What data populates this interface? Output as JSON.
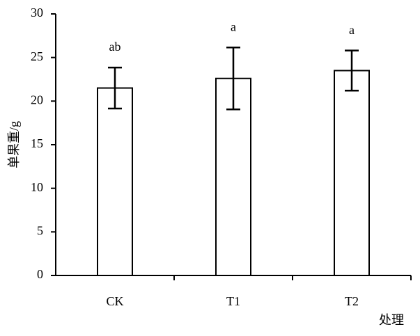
{
  "chart_data": {
    "type": "bar",
    "x_label": "处理",
    "y_label": "单果重/g",
    "categories": [
      "CK",
      "T1",
      "T2"
    ],
    "values": [
      21.5,
      22.6,
      23.5
    ],
    "errors": [
      2.35,
      3.55,
      2.3
    ],
    "annotations": [
      "ab",
      "a",
      "a"
    ],
    "color": "#ffffff",
    "ylim": [
      0,
      30
    ],
    "yticks": [
      0,
      5,
      10,
      15,
      20,
      25,
      30
    ],
    "grid": false
  }
}
